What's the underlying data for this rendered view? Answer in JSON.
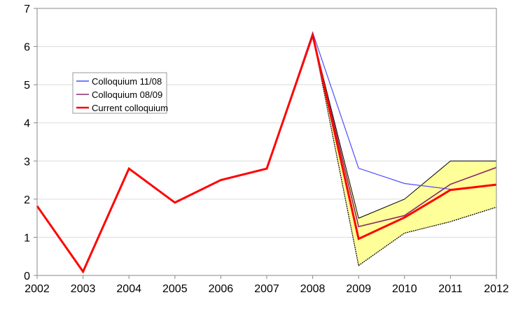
{
  "chart_data": {
    "type": "line",
    "title": "",
    "xlabel": "",
    "ylabel": "",
    "x": [
      2002,
      2003,
      2004,
      2005,
      2006,
      2007,
      2008,
      2009,
      2010,
      2011,
      2012
    ],
    "xtick_labels": [
      "2002",
      "2003",
      "2004",
      "2005",
      "2006",
      "2007",
      "2008",
      "2009",
      "2010",
      "2011",
      "2012"
    ],
    "ylim": [
      0,
      7
    ],
    "ytick_labels": [
      "0",
      "1",
      "2",
      "3",
      "4",
      "5",
      "6",
      "7"
    ],
    "grid": "horizontal",
    "legend_position": "left",
    "series": [
      {
        "name": "Colloquium 11/08",
        "color": "#4d4dff",
        "values": [
          1.82,
          0.1,
          2.8,
          1.91,
          2.5,
          2.8,
          6.37,
          2.81,
          2.41,
          2.26,
          null
        ]
      },
      {
        "name": "Colloquium 08/09",
        "color": "#8b2a6b",
        "values": [
          1.82,
          0.1,
          2.8,
          1.91,
          2.5,
          2.8,
          6.3,
          1.28,
          1.57,
          2.39,
          2.83
        ]
      },
      {
        "name": "Current colloquium",
        "color": "#ff0000",
        "values": [
          1.82,
          0.1,
          2.8,
          1.91,
          2.5,
          2.8,
          6.3,
          0.96,
          1.52,
          2.24,
          2.38
        ]
      }
    ],
    "band": {
      "color": "#ffff99",
      "x": [
        2008,
        2009,
        2010,
        2011,
        2012
      ],
      "upper": [
        6.3,
        1.5,
        2.0,
        3.0,
        3.0
      ],
      "lower": [
        6.3,
        0.26,
        1.11,
        1.41,
        1.79
      ]
    }
  }
}
